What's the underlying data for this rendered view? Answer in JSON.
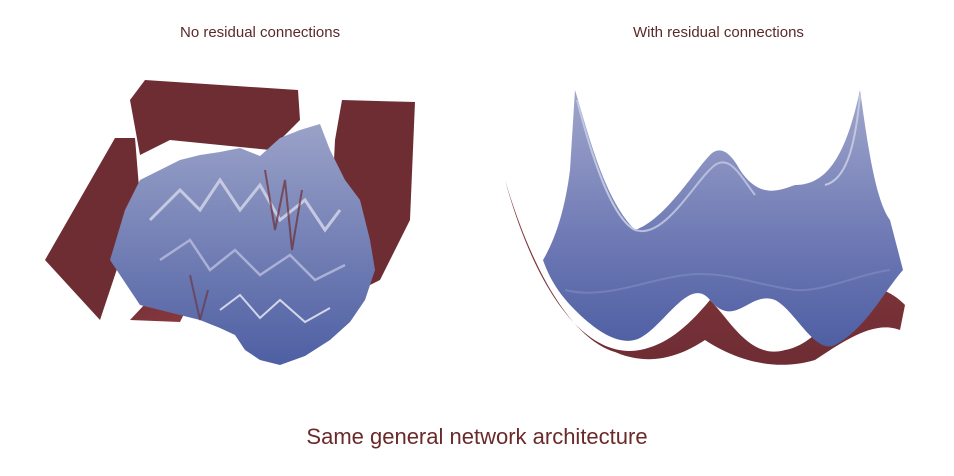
{
  "panels": {
    "left": {
      "title": "No residual connections"
    },
    "right": {
      "title": "With residual connections"
    }
  },
  "caption": "Same general network architecture",
  "colors": {
    "surface_low": "#5566a8",
    "surface_high": "#6e2d33",
    "surface_mid": "#8d93c0",
    "text": "#5a2a2a"
  }
}
